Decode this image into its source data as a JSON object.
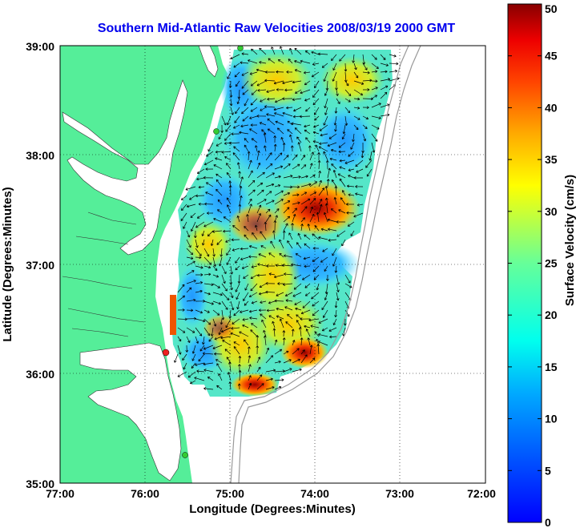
{
  "title": "Southern Mid-Atlantic Raw Velocities 2008/03/19 2000 GMT",
  "xlabel": "Longitude (Degrees:Minutes)",
  "ylabel": "Latitude (Degrees:Minutes)",
  "colorbar_label": "Surface Velocity (cm/s)",
  "x_ticks": [
    "77:00",
    "76:00",
    "75:00",
    "74:00",
    "73:00",
    "72:00"
  ],
  "y_ticks": [
    "39:00",
    "38:00",
    "37:00",
    "36:00",
    "35:00"
  ],
  "colorbar_ticks": [
    "50",
    "45",
    "40",
    "35",
    "30",
    "25",
    "20",
    "15",
    "10",
    "5",
    "0"
  ],
  "map": {
    "lon_range": [
      -77,
      -72
    ],
    "lat_range": [
      35,
      39
    ],
    "grid": "dotted",
    "colormap": "jet",
    "velocity_range_cm_s": [
      0,
      50
    ],
    "land_color": "#55ee99",
    "water_color": "#ffffff",
    "station_markers": [
      {
        "name": "station-north",
        "lon": -74.87,
        "lat": 38.98,
        "color": "#33cc33"
      },
      {
        "name": "station-mid",
        "lon": -75.08,
        "lat": 38.22,
        "color": "#33cc33"
      },
      {
        "name": "station-hatteras",
        "lon": -75.7,
        "lat": 36.18,
        "color": "#ee2222"
      },
      {
        "name": "station-south",
        "lon": -75.5,
        "lat": 35.25,
        "color": "#33cc33"
      }
    ]
  }
}
